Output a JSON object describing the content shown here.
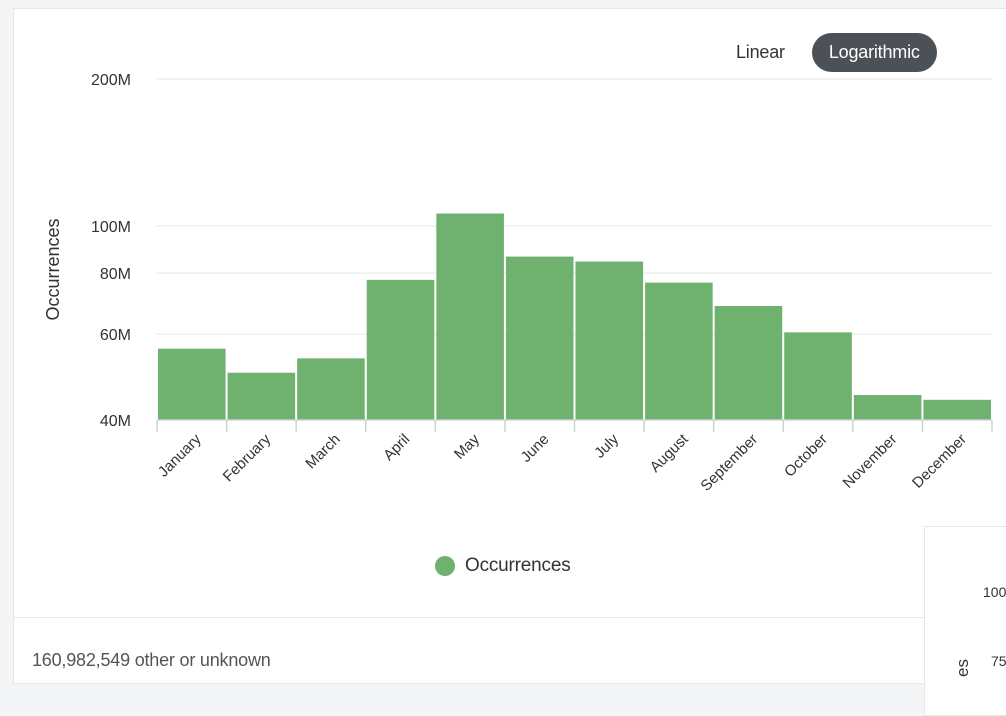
{
  "scale_toggle": {
    "options": [
      {
        "label": "Linear",
        "active": false
      },
      {
        "label": "Logarithmic",
        "active": true
      }
    ]
  },
  "chart_data": {
    "type": "bar",
    "title": "",
    "xlabel": "",
    "ylabel": "Occurrences",
    "scale": "log",
    "ylim": [
      40000000,
      200000000
    ],
    "yticks": [
      {
        "value": 40000000,
        "label": "40M"
      },
      {
        "value": 60000000,
        "label": "60M"
      },
      {
        "value": 80000000,
        "label": "80M"
      },
      {
        "value": 100000000,
        "label": "100M"
      },
      {
        "value": 200000000,
        "label": "200M"
      }
    ],
    "categories": [
      "January",
      "February",
      "March",
      "April",
      "May",
      "June",
      "July",
      "August",
      "September",
      "October",
      "November",
      "December"
    ],
    "series": [
      {
        "name": "Occurrences",
        "color": "#6fb16f",
        "values": [
          56000000,
          50000000,
          53500000,
          77500000,
          106000000,
          86500000,
          84500000,
          76500000,
          68500000,
          60500000,
          45000000,
          44000000
        ]
      }
    ],
    "grid": true,
    "legend": "bottom-center"
  },
  "legend": {
    "label": "Occurrences"
  },
  "footer": {
    "text": "160,982,549 other or unknown"
  },
  "overlap_card": {
    "tick_top": "100",
    "tick_mid": "75",
    "axis_fragment": "es"
  }
}
